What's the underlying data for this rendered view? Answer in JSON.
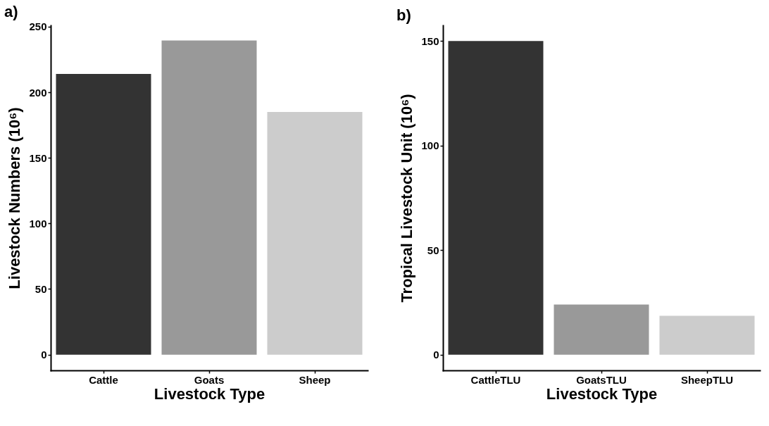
{
  "chart_data": [
    {
      "type": "bar",
      "title": "a)",
      "xlabel": "Livestock Type",
      "ylabel": "Livestock Numbers (10⁶)",
      "categories": [
        "Cattle",
        "Goats",
        "Sheep"
      ],
      "values": [
        214,
        239.5,
        185
      ],
      "colors": [
        "#333333",
        "#999999",
        "#cccccc"
      ],
      "ylim": [
        -12,
        251
      ],
      "yticks": [
        0,
        50,
        100,
        150,
        200,
        250
      ]
    },
    {
      "type": "bar",
      "title": "b)",
      "xlabel": "Livestock Type",
      "ylabel": "Tropical Livestock Unit (10⁶)",
      "categories": [
        "CattleTLU",
        "GoatsTLU",
        "SheepTLU"
      ],
      "values": [
        150,
        24,
        18.6
      ],
      "colors": [
        "#333333",
        "#999999",
        "#cccccc"
      ],
      "ylim": [
        -7.5,
        157.5
      ],
      "yticks": [
        0,
        50,
        100,
        150
      ]
    }
  ]
}
